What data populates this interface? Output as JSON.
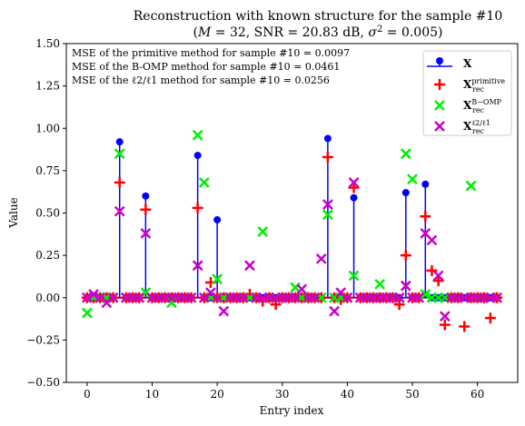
{
  "chart_data": {
    "type": "scatter",
    "title_line1": "Reconstruction with known structure for the sample #10",
    "title_line2": "(M = 32, SNR = 20.83 dB, σ² = 0.005)",
    "xlabel": "Entry index",
    "ylabel": "Value",
    "xlim": [
      -3.2,
      66.2
    ],
    "ylim": [
      -0.5,
      1.5
    ],
    "x_ticks": [
      0,
      10,
      20,
      30,
      40,
      50,
      60
    ],
    "y_ticks": [
      -0.5,
      -0.25,
      0.0,
      0.25,
      0.5,
      0.75,
      1.0,
      1.25,
      1.5
    ],
    "y_tick_labels": [
      "−0.50",
      "−0.25",
      "0.00",
      "0.25",
      "0.50",
      "0.75",
      "1.00",
      "1.25",
      "1.50"
    ],
    "grid": false,
    "legend_position": "top-right",
    "annotations": [
      "MSE of the primitive method for sample #10 = 0.0097",
      "MSE of the B-OMP method for sample #10 = 0.0461",
      "MSE of the ℓ2/ℓ1 method for sample #10 = 0.0256"
    ],
    "n_entries": 64,
    "series": [
      {
        "name": "X",
        "legend_main": "X",
        "legend_sub": "",
        "legend_sup": "",
        "marker": "stem",
        "color": "#0000ff",
        "points": [
          [
            5,
            0.92
          ],
          [
            9,
            0.6
          ],
          [
            17,
            0.84
          ],
          [
            20,
            0.46
          ],
          [
            37,
            0.94
          ],
          [
            41,
            0.59
          ],
          [
            49,
            0.62
          ],
          [
            52,
            0.67
          ]
        ]
      },
      {
        "name": "X rec primitive",
        "legend_main": "X",
        "legend_sub": "rec",
        "legend_sup": "primitive",
        "marker": "plus",
        "color": "#ff0000",
        "points": [
          [
            5,
            0.68
          ],
          [
            9,
            0.52
          ],
          [
            17,
            0.53
          ],
          [
            19,
            0.09
          ],
          [
            25,
            0.02
          ],
          [
            27,
            -0.02
          ],
          [
            29,
            -0.04
          ],
          [
            37,
            0.83
          ],
          [
            39,
            -0.01
          ],
          [
            41,
            0.65
          ],
          [
            48,
            -0.04
          ],
          [
            49,
            0.25
          ],
          [
            52,
            0.48
          ],
          [
            53,
            0.16
          ],
          [
            54,
            0.1
          ],
          [
            55,
            -0.16
          ],
          [
            58,
            -0.17
          ],
          [
            62,
            -0.12
          ]
        ]
      },
      {
        "name": "X rec B-OMP",
        "legend_main": "X",
        "legend_sub": "rec",
        "legend_sup": "B−OMP",
        "marker": "x",
        "color": "#00ee00",
        "points": [
          [
            0,
            -0.09
          ],
          [
            5,
            0.85
          ],
          [
            9,
            0.03
          ],
          [
            13,
            -0.03
          ],
          [
            17,
            0.96
          ],
          [
            18,
            0.68
          ],
          [
            20,
            0.11
          ],
          [
            27,
            0.39
          ],
          [
            32,
            0.06
          ],
          [
            37,
            0.49
          ],
          [
            41,
            0.13
          ],
          [
            45,
            0.08
          ],
          [
            49,
            0.85
          ],
          [
            50,
            0.7
          ],
          [
            52,
            0.02
          ],
          [
            59,
            0.66
          ]
        ]
      },
      {
        "name": "X rec l2/l1",
        "legend_main": "X",
        "legend_sub": "rec",
        "legend_sup": "ℓ2/ℓ1",
        "marker": "x",
        "color": "#cc00cc",
        "points": [
          [
            1,
            0.02
          ],
          [
            3,
            -0.03
          ],
          [
            5,
            0.51
          ],
          [
            9,
            0.38
          ],
          [
            17,
            0.19
          ],
          [
            19,
            0.03
          ],
          [
            21,
            -0.08
          ],
          [
            25,
            0.19
          ],
          [
            33,
            0.05
          ],
          [
            36,
            0.23
          ],
          [
            37,
            0.55
          ],
          [
            38,
            -0.08
          ],
          [
            39,
            0.03
          ],
          [
            41,
            0.68
          ],
          [
            49,
            0.07
          ],
          [
            52,
            0.38
          ],
          [
            53,
            0.34
          ],
          [
            54,
            0.13
          ],
          [
            55,
            -0.11
          ]
        ]
      }
    ]
  }
}
